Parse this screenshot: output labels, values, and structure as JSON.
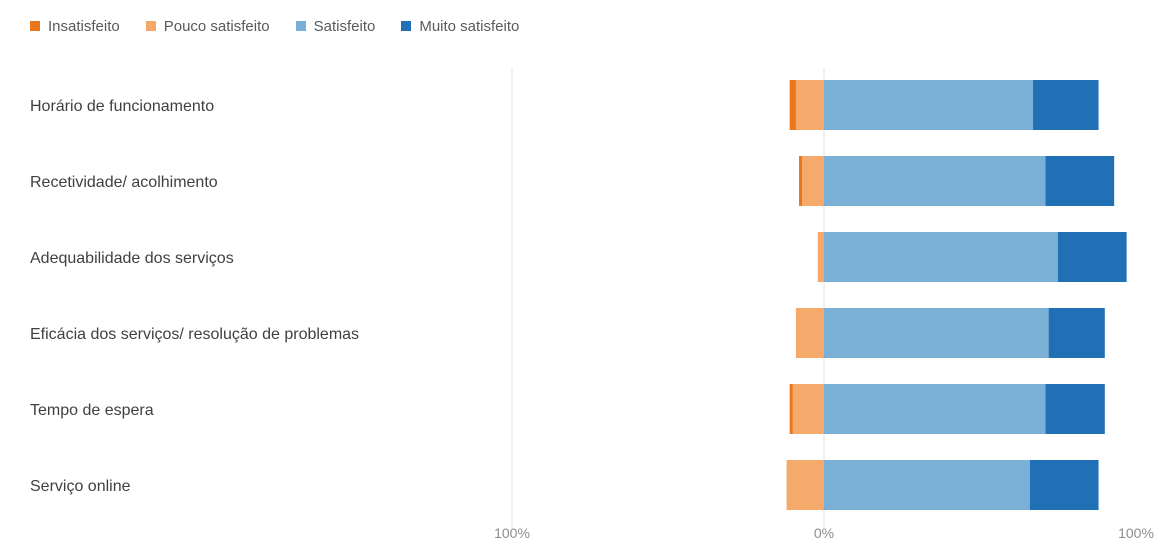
{
  "chart_data": {
    "type": "bar",
    "orientation": "horizontal",
    "stacking": "diverging",
    "categories": [
      "Horário de funcionamento",
      "Recetividade/ acolhimento",
      "Adequabilidade dos serviços",
      "Eficácia dos serviços/ resolução de problemas",
      "Tempo de espera",
      "Serviço online"
    ],
    "series": [
      {
        "name": "Insatisfeito",
        "color": "#E8761C",
        "side": "negative",
        "values": [
          2,
          1,
          0,
          0,
          1,
          0
        ]
      },
      {
        "name": "Pouco satisfeito",
        "color": "#F5A96A",
        "side": "negative",
        "values": [
          9,
          7,
          2,
          9,
          10,
          12
        ]
      },
      {
        "name": "Satisfeito",
        "color": "#7AB0D6",
        "side": "positive",
        "values": [
          67,
          71,
          75,
          72,
          71,
          66
        ]
      },
      {
        "name": "Muito satisfeito",
        "color": "#2170B6",
        "side": "positive",
        "values": [
          21,
          22,
          22,
          18,
          19,
          22
        ]
      }
    ],
    "xlim": [
      -100,
      100
    ],
    "x_ticks": [
      {
        "value": -100,
        "label": "100%"
      },
      {
        "value": 0,
        "label": "0%"
      },
      {
        "value": 100,
        "label": "100%"
      }
    ],
    "legend_position": "top-left",
    "grid": false
  }
}
